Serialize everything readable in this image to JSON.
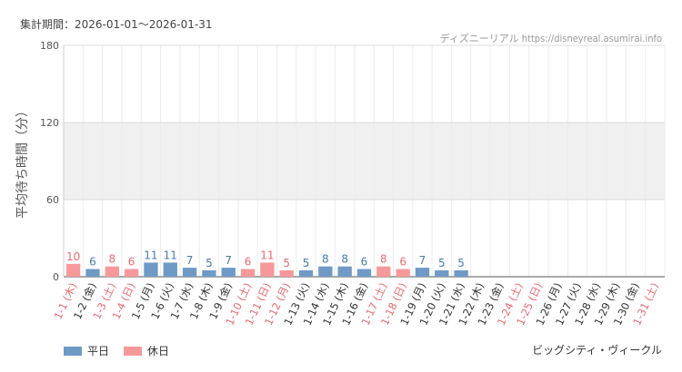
{
  "header": {
    "period": "集計期間：2026-01-01〜2026-01-31",
    "source": "ディズニーリアル https://disneyreal.asumirai.info"
  },
  "footer": {
    "attraction": "ビッグシティ・ヴィークル"
  },
  "colors": {
    "weekday": "#6f9ac6",
    "holiday": "#f7989b",
    "weekday_label": "#4a7ab2",
    "holiday_label": "#e96a72",
    "grid_band": "#f0f0f0"
  },
  "chart_data": {
    "type": "bar",
    "ylabel": "平均待ち時間（分）",
    "ylim": [
      0,
      180
    ],
    "yticks": [
      0,
      60,
      120,
      180
    ],
    "band": [
      60,
      120
    ],
    "legend": [
      {
        "key": "weekday",
        "label": "平日"
      },
      {
        "key": "holiday",
        "label": "休日"
      }
    ],
    "categories": [
      "1-1 (木)",
      "1-2 (金)",
      "1-3 (土)",
      "1-4 (日)",
      "1-5 (月)",
      "1-6 (火)",
      "1-7 (水)",
      "1-8 (木)",
      "1-9 (金)",
      "1-10 (土)",
      "1-11 (日)",
      "1-12 (月)",
      "1-13 (火)",
      "1-14 (水)",
      "1-15 (木)",
      "1-16 (金)",
      "1-17 (土)",
      "1-18 (日)",
      "1-19 (月)",
      "1-20 (火)",
      "1-21 (水)",
      "1-22 (木)",
      "1-23 (金)",
      "1-24 (土)",
      "1-25 (日)",
      "1-26 (月)",
      "1-27 (火)",
      "1-28 (水)",
      "1-29 (木)",
      "1-30 (金)",
      "1-31 (土)"
    ],
    "values": [
      10,
      6,
      8,
      6,
      11,
      11,
      7,
      5,
      7,
      6,
      11,
      5,
      5,
      8,
      8,
      6,
      8,
      6,
      7,
      5,
      5,
      null,
      null,
      null,
      null,
      null,
      null,
      null,
      null,
      null,
      null
    ],
    "day_type": [
      "holiday",
      "weekday",
      "holiday",
      "holiday",
      "weekday",
      "weekday",
      "weekday",
      "weekday",
      "weekday",
      "holiday",
      "holiday",
      "holiday",
      "weekday",
      "weekday",
      "weekday",
      "weekday",
      "holiday",
      "holiday",
      "weekday",
      "weekday",
      "weekday",
      "weekday",
      "weekday",
      "holiday",
      "holiday",
      "weekday",
      "weekday",
      "weekday",
      "weekday",
      "weekday",
      "holiday"
    ]
  }
}
